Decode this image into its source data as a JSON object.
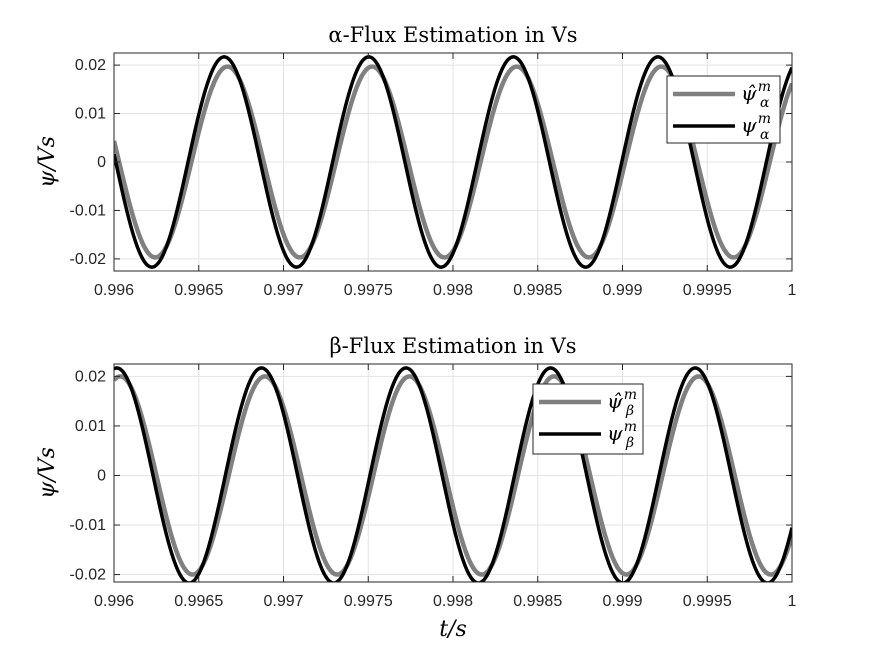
{
  "chart_data": [
    {
      "type": "line",
      "title": "α-Flux Estimation in Vs",
      "ylabel": "ψ/Vs",
      "xlabel": "",
      "xlim": [
        0.996,
        1.0
      ],
      "ylim": [
        -0.0225,
        0.0225
      ],
      "x_ticks": [
        0.996,
        0.9965,
        0.997,
        0.9975,
        0.998,
        0.9985,
        0.999,
        0.9995,
        1.0
      ],
      "x_tick_labels": [
        "0.996",
        "0.9965",
        "0.997",
        "0.9975",
        "0.998",
        "0.9985",
        "0.999",
        "0.9995",
        "1"
      ],
      "y_ticks": [
        -0.02,
        -0.01,
        0,
        0.01,
        0.02
      ],
      "y_tick_labels": [
        "-0.02",
        "-0.01",
        "0",
        "0.01",
        "0.02"
      ],
      "grid": true,
      "legend_position": "right",
      "series": [
        {
          "name": "ψ̂",
          "sub": "α",
          "sup": "m",
          "color": "#808080",
          "amplitude": 0.0197,
          "x_peak": 0.99667,
          "period": 0.000853
        },
        {
          "name": "ψ",
          "sub": "α",
          "sup": "m",
          "color": "#000000",
          "amplitude": 0.0217,
          "x_peak": 0.99665,
          "period": 0.000853
        }
      ]
    },
    {
      "type": "line",
      "title": "β-Flux Estimation in Vs",
      "ylabel": "ψ/Vs",
      "xlabel": "t/s",
      "xlim": [
        0.996,
        1.0
      ],
      "ylim": [
        -0.0215,
        0.0225
      ],
      "x_ticks": [
        0.996,
        0.9965,
        0.997,
        0.9975,
        0.998,
        0.9985,
        0.999,
        0.9995,
        1.0
      ],
      "x_tick_labels": [
        "0.996",
        "0.9965",
        "0.997",
        "0.9975",
        "0.998",
        "0.9985",
        "0.999",
        "0.9995",
        "1"
      ],
      "y_ticks": [
        -0.02,
        -0.01,
        0,
        0.01,
        0.02
      ],
      "y_tick_labels": [
        "-0.02",
        "-0.01",
        "0",
        "0.01",
        "0.02"
      ],
      "grid": true,
      "legend_position": "top-center",
      "series": [
        {
          "name": "ψ̂",
          "sub": "β",
          "sup": "m",
          "color": "#808080",
          "amplitude": 0.02,
          "x_peak": 0.99689,
          "period": 0.000853
        },
        {
          "name": "ψ",
          "sub": "β",
          "sup": "m",
          "color": "#000000",
          "amplitude": 0.0217,
          "x_peak": 0.99687,
          "period": 0.000853
        }
      ]
    }
  ]
}
